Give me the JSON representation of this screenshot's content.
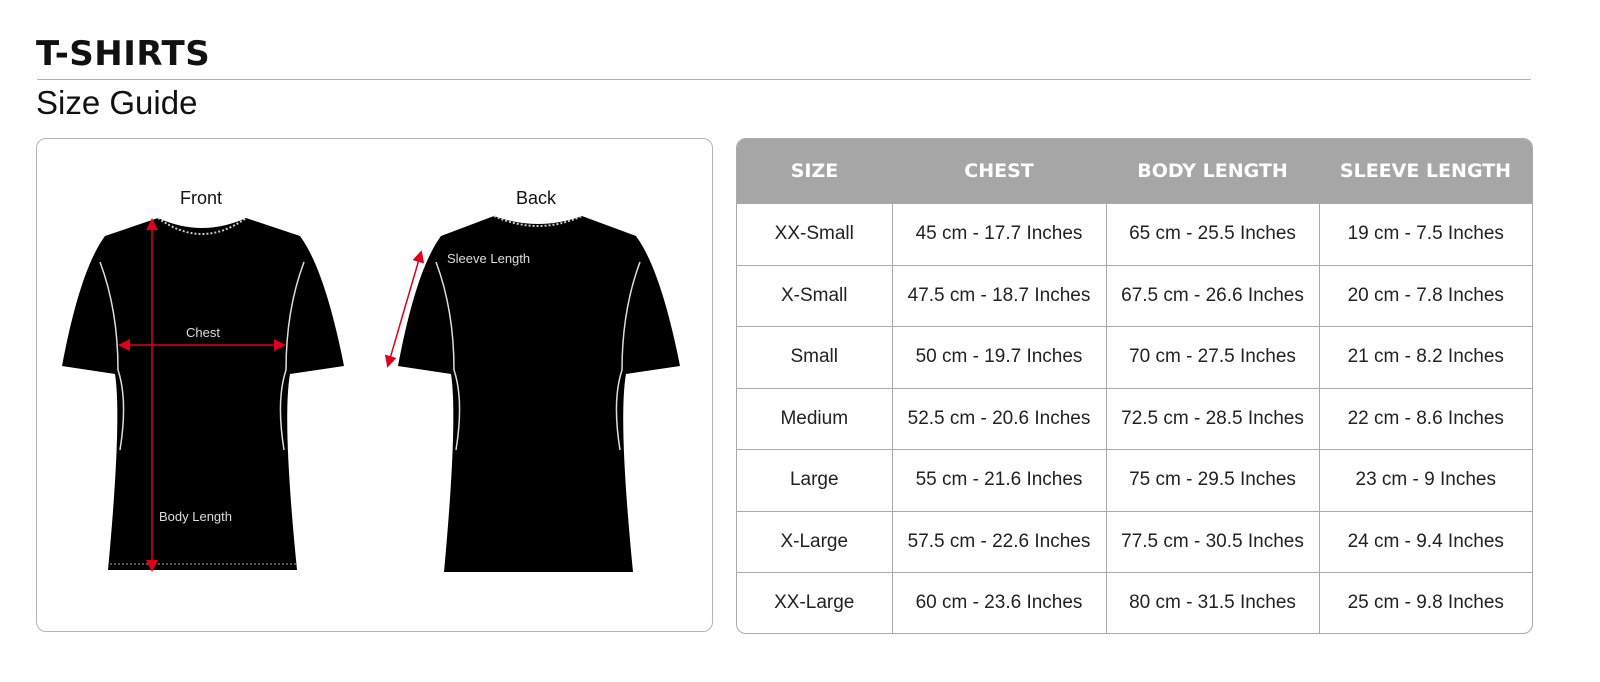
{
  "header": {
    "title": "T-SHIRTS",
    "subtitle": "Size Guide"
  },
  "diagram": {
    "front_label": "Front",
    "back_label": "Back",
    "chest_label": "Chest",
    "body_length_label": "Body Length",
    "sleeve_length_label": "Sleeve Length",
    "arrow_color": "#e0001b",
    "shirt_color": "#000000"
  },
  "table": {
    "headers": [
      "SIZE",
      "CHEST",
      "BODY LENGTH",
      "SLEEVE LENGTH"
    ],
    "header_color": "#a6a6a6",
    "rows": [
      [
        "XX-Small",
        "45 cm - 17.7 Inches",
        "65 cm - 25.5 Inches",
        "19 cm - 7.5 Inches"
      ],
      [
        "X-Small",
        "47.5 cm - 18.7 Inches",
        "67.5 cm - 26.6 Inches",
        "20 cm - 7.8 Inches"
      ],
      [
        "Small",
        "50 cm - 19.7 Inches",
        "70 cm - 27.5 Inches",
        "21 cm - 8.2 Inches"
      ],
      [
        "Medium",
        "52.5 cm - 20.6 Inches",
        "72.5 cm - 28.5 Inches",
        "22 cm - 8.6 Inches"
      ],
      [
        "Large",
        "55 cm - 21.6 Inches",
        "75 cm - 29.5 Inches",
        "23 cm - 9 Inches"
      ],
      [
        "X-Large",
        "57.5 cm - 22.6 Inches",
        "77.5 cm - 30.5 Inches",
        "24 cm - 9.4 Inches"
      ],
      [
        "XX-Large",
        "60 cm - 23.6 Inches",
        "80 cm - 31.5 Inches",
        "25 cm - 9.8 Inches"
      ]
    ]
  }
}
